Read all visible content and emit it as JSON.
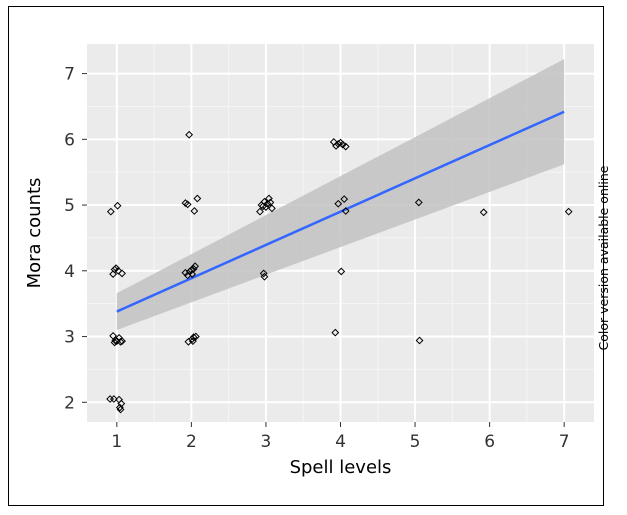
{
  "side_note": "Color version available online",
  "colors": {
    "panel_background": "#ebebeb",
    "grid_major": "#ffffff",
    "grid_minor": "#f5f5f5",
    "fit_line": "#3366ff",
    "confidence_band": "#c2c2c2",
    "points": "#000000"
  },
  "chart_data": {
    "type": "scatter",
    "title": "",
    "xlabel": "Spell levels",
    "ylabel": "Mora counts",
    "xlim": [
      0.6,
      7.4
    ],
    "ylim": [
      1.7,
      7.45
    ],
    "x_ticks": [
      1,
      2,
      3,
      4,
      5,
      6,
      7
    ],
    "y_ticks": [
      2,
      3,
      4,
      5,
      6,
      7
    ],
    "grid": true,
    "legend": "none",
    "point_marker": "open-diamond",
    "points": [
      {
        "x": 0.91,
        "y": 2.05
      },
      {
        "x": 0.96,
        "y": 2.05
      },
      {
        "x": 1.03,
        "y": 2.04
      },
      {
        "x": 1.06,
        "y": 1.98
      },
      {
        "x": 1.04,
        "y": 1.92
      },
      {
        "x": 1.05,
        "y": 1.89
      },
      {
        "x": 0.95,
        "y": 3.01
      },
      {
        "x": 0.98,
        "y": 2.94
      },
      {
        "x": 1.0,
        "y": 2.93
      },
      {
        "x": 1.03,
        "y": 2.98
      },
      {
        "x": 1.05,
        "y": 2.92
      },
      {
        "x": 1.07,
        "y": 2.93
      },
      {
        "x": 0.97,
        "y": 2.91
      },
      {
        "x": 0.95,
        "y": 3.95
      },
      {
        "x": 0.97,
        "y": 4.02
      },
      {
        "x": 0.99,
        "y": 4.04
      },
      {
        "x": 1.02,
        "y": 4.0
      },
      {
        "x": 1.07,
        "y": 3.96
      },
      {
        "x": 0.92,
        "y": 4.9
      },
      {
        "x": 1.01,
        "y": 4.99
      },
      {
        "x": 1.92,
        "y": 3.97
      },
      {
        "x": 1.95,
        "y": 3.93
      },
      {
        "x": 1.98,
        "y": 3.99
      },
      {
        "x": 2.01,
        "y": 3.95
      },
      {
        "x": 2.03,
        "y": 4.03
      },
      {
        "x": 2.05,
        "y": 4.07
      },
      {
        "x": 2.0,
        "y": 4.01
      },
      {
        "x": 1.96,
        "y": 2.92
      },
      {
        "x": 2.01,
        "y": 2.96
      },
      {
        "x": 2.03,
        "y": 2.99
      },
      {
        "x": 2.06,
        "y": 3.0
      },
      {
        "x": 2.02,
        "y": 2.93
      },
      {
        "x": 1.92,
        "y": 5.03
      },
      {
        "x": 1.95,
        "y": 5.01
      },
      {
        "x": 2.04,
        "y": 4.91
      },
      {
        "x": 2.08,
        "y": 5.1
      },
      {
        "x": 1.97,
        "y": 6.07
      },
      {
        "x": 2.92,
        "y": 4.9
      },
      {
        "x": 2.94,
        "y": 5.0
      },
      {
        "x": 2.96,
        "y": 4.98
      },
      {
        "x": 2.98,
        "y": 5.05
      },
      {
        "x": 3.0,
        "y": 4.97
      },
      {
        "x": 3.02,
        "y": 5.02
      },
      {
        "x": 3.04,
        "y": 5.1
      },
      {
        "x": 3.06,
        "y": 5.04
      },
      {
        "x": 3.08,
        "y": 4.95
      },
      {
        "x": 2.97,
        "y": 3.96
      },
      {
        "x": 2.98,
        "y": 3.91
      },
      {
        "x": 3.91,
        "y": 5.96
      },
      {
        "x": 3.94,
        "y": 5.9
      },
      {
        "x": 3.97,
        "y": 5.93
      },
      {
        "x": 4.0,
        "y": 5.95
      },
      {
        "x": 4.03,
        "y": 5.92
      },
      {
        "x": 4.07,
        "y": 5.89
      },
      {
        "x": 3.97,
        "y": 5.02
      },
      {
        "x": 4.05,
        "y": 5.09
      },
      {
        "x": 4.07,
        "y": 4.91
      },
      {
        "x": 4.01,
        "y": 3.99
      },
      {
        "x": 3.93,
        "y": 3.06
      },
      {
        "x": 5.05,
        "y": 5.04
      },
      {
        "x": 5.06,
        "y": 2.94
      },
      {
        "x": 5.92,
        "y": 4.89
      },
      {
        "x": 7.06,
        "y": 4.9
      }
    ],
    "fit": {
      "method": "linear regression with confidence band",
      "x_start": 1,
      "x_end": 7,
      "y_start": 3.38,
      "y_end": 6.42,
      "band_lower": [
        3.1,
        5.62
      ],
      "band_upper": [
        3.66,
        7.22
      ]
    }
  }
}
